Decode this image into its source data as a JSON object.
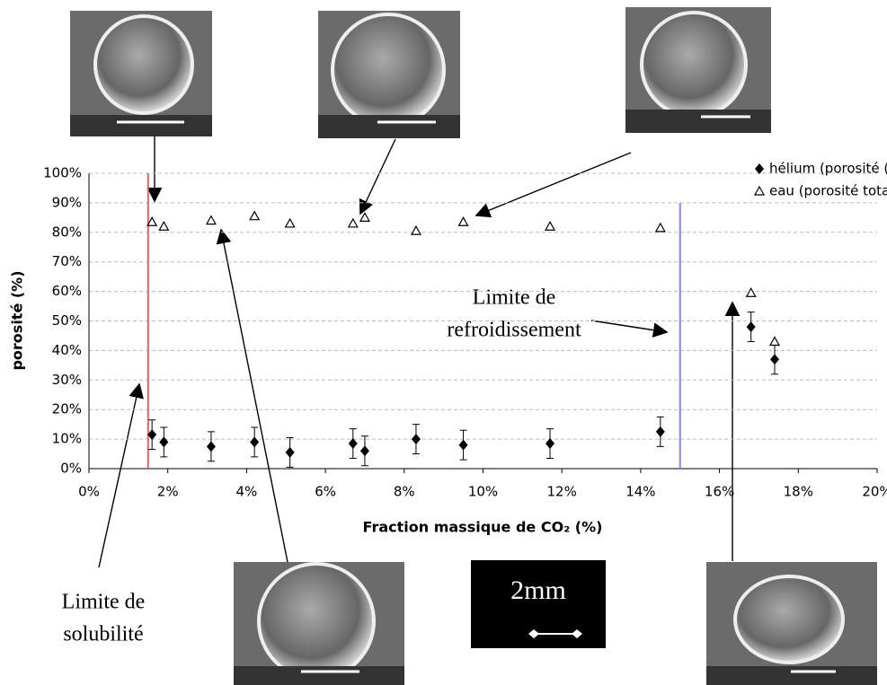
{
  "chart_data": {
    "type": "scatter",
    "x_label": "Fraction massique de CO₂ (%)",
    "y_label": "porosité (%)",
    "x": [
      1.6,
      1.9,
      3.1,
      4.2,
      5.1,
      6.7,
      7.0,
      8.3,
      9.5,
      11.7,
      14.5,
      16.8,
      17.4
    ],
    "series": [
      {
        "name": "hélium (porosité (fermée)",
        "color": "#000000",
        "marker": "diamond",
        "values": [
          11.5,
          9,
          7.5,
          9,
          5.5,
          8.5,
          6,
          10,
          8,
          8.5,
          12.5,
          48,
          37
        ],
        "errors": [
          5,
          5,
          5,
          5,
          5,
          5,
          5,
          5,
          5,
          5,
          5,
          5,
          5
        ]
      },
      {
        "name": "eau (porosité totale)",
        "color": "#000000",
        "marker": "triangle",
        "values": [
          83.5,
          82,
          84,
          85.5,
          83,
          83,
          85,
          80.5,
          83.5,
          82,
          81.5,
          59.5,
          43
        ]
      }
    ],
    "xlim": [
      0,
      20
    ],
    "xticks": [
      {
        "value": 0,
        "label": "0%"
      },
      {
        "value": 2,
        "label": "2%"
      },
      {
        "value": 4,
        "label": "4%"
      },
      {
        "value": 6,
        "label": "6%"
      },
      {
        "value": 8,
        "label": "8%"
      },
      {
        "value": 10,
        "label": "10%"
      },
      {
        "value": 12,
        "label": "12%"
      },
      {
        "value": 14,
        "label": "14%"
      },
      {
        "value": 16,
        "label": "16%"
      },
      {
        "value": 18,
        "label": "18%"
      },
      {
        "value": 20,
        "label": "20%"
      }
    ],
    "ylim": [
      0,
      100
    ],
    "yticks": [
      {
        "value": 0,
        "label": "0%"
      },
      {
        "value": 10,
        "label": "10%"
      },
      {
        "value": 20,
        "label": "20%"
      },
      {
        "value": 30,
        "label": "30%"
      },
      {
        "value": 40,
        "label": "40%"
      },
      {
        "value": 50,
        "label": "50%"
      },
      {
        "value": 60,
        "label": "60%"
      },
      {
        "value": 70,
        "label": "70%"
      },
      {
        "value": 80,
        "label": "80%"
      },
      {
        "value": 90,
        "label": "90%"
      },
      {
        "value": 100,
        "label": "100%"
      }
    ],
    "grid": true,
    "vlines": [
      {
        "x": 1.5,
        "color": "#e06666"
      },
      {
        "x": 15,
        "color": "#8888dd"
      }
    ],
    "annotations": [
      [
        "Limite de",
        "solubilité"
      ],
      [
        "Limite de",
        "refroidissement"
      ]
    ],
    "scale_label": "2mm"
  }
}
